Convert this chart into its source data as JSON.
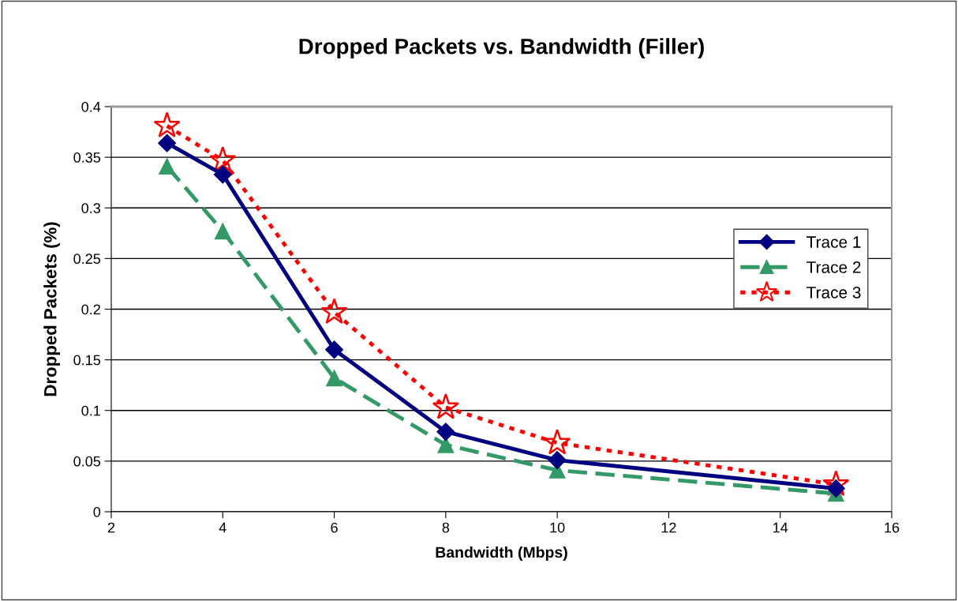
{
  "chart_data": {
    "type": "line",
    "title": "Dropped Packets vs. Bandwidth (Filler)",
    "xlabel": "Bandwidth (Mbps)",
    "ylabel": "Dropped Packets (%)",
    "x": [
      3,
      4,
      6,
      8,
      10,
      15
    ],
    "series": [
      {
        "name": "Trace 1",
        "color": "#000080",
        "values": [
          0.364,
          0.333,
          0.16,
          0.079,
          0.051,
          0.023
        ],
        "marker": "diamond",
        "line_style": "solid"
      },
      {
        "name": "Trace 2",
        "color": "#339966",
        "values": [
          0.341,
          0.277,
          0.132,
          0.066,
          0.041,
          0.018
        ],
        "marker": "triangle",
        "line_style": "dashed"
      },
      {
        "name": "Trace 3",
        "color": "#ff0000",
        "values": [
          0.381,
          0.347,
          0.197,
          0.103,
          0.068,
          0.027
        ],
        "marker": "star",
        "line_style": "dotted"
      }
    ],
    "xlim": [
      2,
      16
    ],
    "xticks": [
      2,
      4,
      6,
      8,
      10,
      12,
      14,
      16
    ],
    "ylim": [
      0,
      0.4
    ],
    "yticks": [
      0,
      0.05,
      0.1,
      0.15,
      0.2,
      0.25,
      0.3,
      0.35,
      0.4
    ],
    "grid": "y",
    "legend": "right"
  }
}
